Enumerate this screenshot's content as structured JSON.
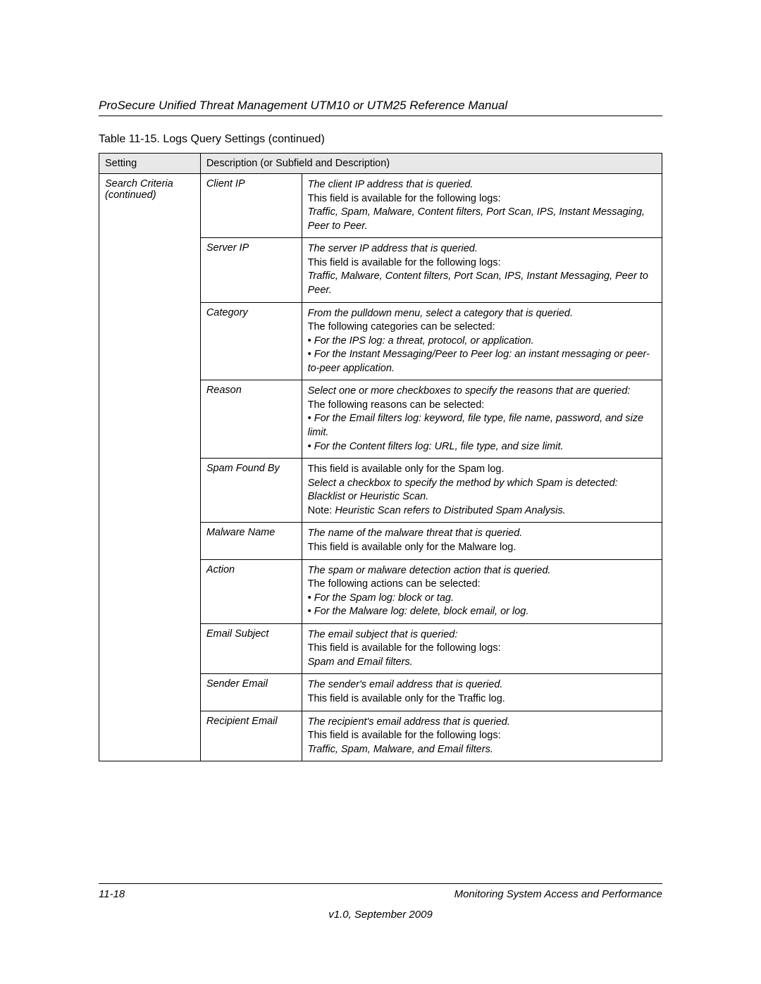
{
  "docTitle": "ProSecure Unified Threat Management UTM10 or UTM25 Reference Manual",
  "tableCaption": "Table 11-15. Logs Query Settings (continued)",
  "header": {
    "setting": "Setting",
    "description": "Description (or Subfield and Description)"
  },
  "settingGroup": "Search Criteria (continued)",
  "rows": [
    {
      "sub": "Client IP",
      "desc": "<span class=\"ital\">The client IP address that is queried.</span><br>This field is available for the following logs:<br><span class=\"ital\">Traffic, Spam, Malware, Content filters, Port Scan, IPS, Instant Messaging, Peer to Peer.</span>"
    },
    {
      "sub": "Server IP",
      "desc": "<span class=\"ital\">The server IP address that is queried.</span><br>This field is available for the following logs:<br><span class=\"ital\">Traffic, Malware, Content filters, Port Scan, IPS, Instant Messaging, Peer to Peer.</span>"
    },
    {
      "sub": "Category",
      "desc": "<span class=\"ital\">From the pulldown menu, select a category that is queried.</span><br>The following categories can be selected:<br>• <span class=\"ital\">For the IPS log: a threat, protocol, or application.</span><br>• <span class=\"ital\">For the Instant Messaging/Peer to Peer log: an instant messaging or peer-to-peer application.</span>"
    },
    {
      "sub": "Reason",
      "desc": "<span class=\"ital\">Select one or more checkboxes to specify the reasons that are queried:</span><br>The following reasons can be selected:<br>• <span class=\"ital\">For the Email filters log: keyword, file type, file name, password, and size limit.</span><br>• <span class=\"ital\">For the Content filters log: URL, file type, and size limit.</span>"
    },
    {
      "sub": "Spam Found By",
      "desc": "This field is available only for the Spam log.<br><span class=\"ital\">Select a checkbox to specify the method by which Spam is detected: Blacklist or Heuristic Scan.</span><br>Note: <span class=\"ital\">Heuristic Scan refers to Distributed Spam Analysis.</span>"
    },
    {
      "sub": "Malware Name",
      "desc": "<span class=\"ital\">The name of the malware threat that is queried.</span><br>This field is available only for the Malware log."
    },
    {
      "sub": "Action",
      "desc": "<span class=\"ital\">The spam or malware detection action that is queried.</span><br>The following actions can be selected:<br>• <span class=\"ital\">For the Spam log: block or tag.</span><br>• <span class=\"ital\">For the Malware log: delete, block email, or log.</span>"
    },
    {
      "sub": "Email Subject",
      "desc": "<span class=\"ital\">The email subject that is queried:</span><br>This field is available for the following logs:<br><span class=\"ital\">Spam and Email filters.</span>"
    },
    {
      "sub": "Sender Email",
      "desc": "<span class=\"ital\">The sender's email address that is queried.</span><br>This field is available only for the Traffic log."
    },
    {
      "sub": "Recipient Email",
      "desc": "<span class=\"ital\">The recipient's email address that is queried.</span><br>This field is available for the following logs:<br><span class=\"ital\">Traffic, Spam, Malware, and Email filters.</span>"
    }
  ],
  "footer": {
    "pageNum": "11-18",
    "right": "Monitoring System Access and Performance",
    "center": "v1.0, September 2009"
  }
}
